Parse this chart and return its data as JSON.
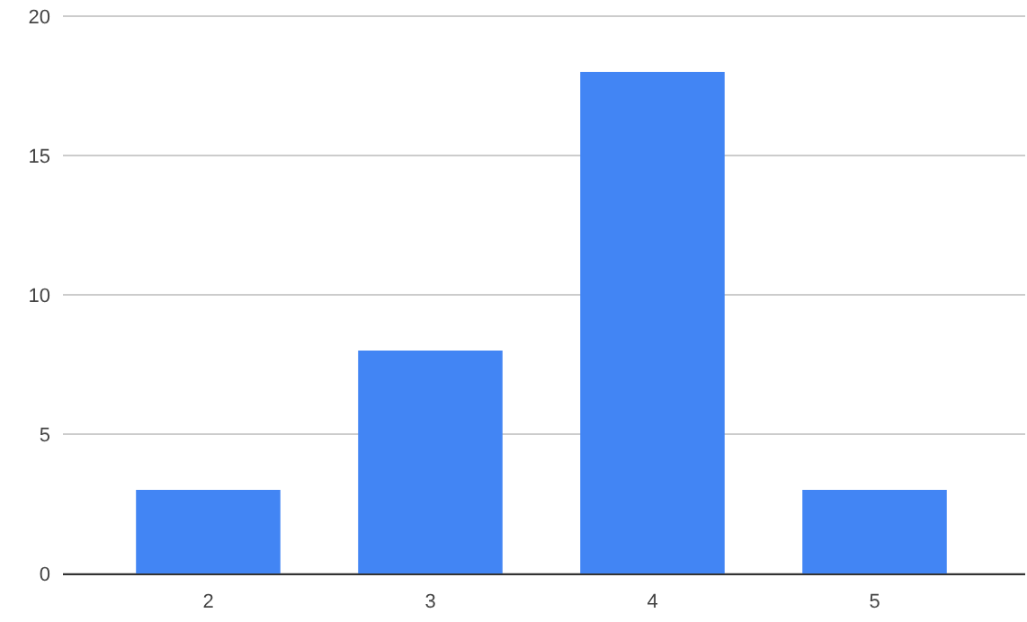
{
  "chart_data": {
    "type": "bar",
    "categories": [
      "2",
      "3",
      "4",
      "5"
    ],
    "values": [
      3,
      8,
      18,
      3
    ],
    "color": "#4285f4",
    "ylim": [
      0,
      20
    ],
    "yticks": [
      0,
      5,
      10,
      15,
      20
    ],
    "grid": "y"
  }
}
